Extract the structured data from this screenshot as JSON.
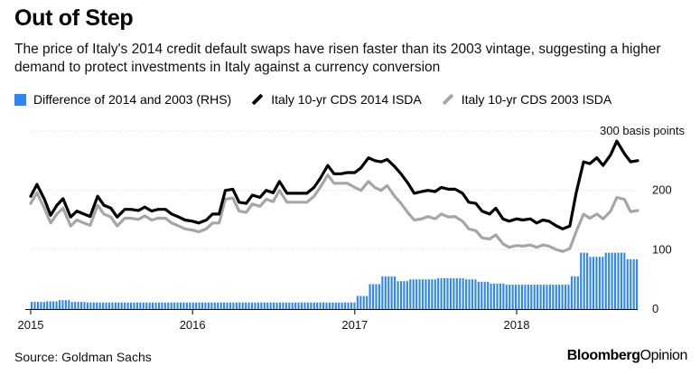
{
  "title": "Out of Step",
  "subtitle": "The price of Italy's 2014 credit default swaps have risen faster than its 2003 vintage, suggesting a higher demand to protect investments in Italy against a currency conversion",
  "legend": [
    {
      "label": "Difference of 2014 and 2003 (RHS)",
      "color": "#2f86f5",
      "kind": "bar"
    },
    {
      "label": "Italy 10-yr CDS 2014 ISDA",
      "color": "#000000",
      "kind": "line"
    },
    {
      "label": "Italy 10-yr CDS 2003 ISDA",
      "color": "#a6a6a6",
      "kind": "line"
    }
  ],
  "source": "Source: Goldman Sachs",
  "brand": {
    "bold": "Bloomberg",
    "thin": "Opinion"
  },
  "chart_data": {
    "type": "line",
    "x_range": [
      "2015-01-01",
      "2018-10-01"
    ],
    "x_ticks": [
      "2015",
      "2016",
      "2017",
      "2018"
    ],
    "ylim": [
      0,
      300
    ],
    "y_ticks": [
      {
        "value": 0,
        "label": "0"
      },
      {
        "value": 100,
        "label": "100"
      },
      {
        "value": 200,
        "label": "200"
      },
      {
        "value": 300,
        "label": "300 basis points"
      }
    ],
    "series": [
      {
        "name": "Italy 10-yr CDS 2014 ISDA",
        "color": "#000000",
        "points": [
          [
            "2015-01-01",
            190
          ],
          [
            "2015-01-15",
            210
          ],
          [
            "2015-02-01",
            185
          ],
          [
            "2015-02-15",
            158
          ],
          [
            "2015-03-01",
            175
          ],
          [
            "2015-03-15",
            186
          ],
          [
            "2015-04-01",
            155
          ],
          [
            "2015-04-15",
            165
          ],
          [
            "2015-05-01",
            160
          ],
          [
            "2015-05-15",
            156
          ],
          [
            "2015-06-01",
            190
          ],
          [
            "2015-06-15",
            175
          ],
          [
            "2015-07-01",
            170
          ],
          [
            "2015-07-15",
            155
          ],
          [
            "2015-08-01",
            168
          ],
          [
            "2015-08-15",
            168
          ],
          [
            "2015-09-01",
            166
          ],
          [
            "2015-09-15",
            172
          ],
          [
            "2015-10-01",
            165
          ],
          [
            "2015-10-15",
            168
          ],
          [
            "2015-11-01",
            168
          ],
          [
            "2015-11-15",
            160
          ],
          [
            "2015-12-01",
            155
          ],
          [
            "2015-12-15",
            150
          ],
          [
            "2016-01-01",
            148
          ],
          [
            "2016-01-15",
            145
          ],
          [
            "2016-02-01",
            150
          ],
          [
            "2016-02-15",
            160
          ],
          [
            "2016-03-01",
            160
          ],
          [
            "2016-03-15",
            200
          ],
          [
            "2016-04-01",
            202
          ],
          [
            "2016-04-15",
            180
          ],
          [
            "2016-05-01",
            178
          ],
          [
            "2016-05-15",
            192
          ],
          [
            "2016-06-01",
            188
          ],
          [
            "2016-06-15",
            200
          ],
          [
            "2016-07-01",
            196
          ],
          [
            "2016-07-15",
            215
          ],
          [
            "2016-08-01",
            195
          ],
          [
            "2016-08-15",
            195
          ],
          [
            "2016-09-01",
            195
          ],
          [
            "2016-09-15",
            195
          ],
          [
            "2016-10-01",
            205
          ],
          [
            "2016-10-15",
            220
          ],
          [
            "2016-11-01",
            242
          ],
          [
            "2016-11-15",
            228
          ],
          [
            "2016-12-01",
            228
          ],
          [
            "2016-12-15",
            230
          ],
          [
            "2017-01-01",
            230
          ],
          [
            "2017-01-15",
            238
          ],
          [
            "2017-02-01",
            255
          ],
          [
            "2017-02-15",
            250
          ],
          [
            "2017-03-01",
            248
          ],
          [
            "2017-03-15",
            252
          ],
          [
            "2017-04-01",
            240
          ],
          [
            "2017-04-15",
            228
          ],
          [
            "2017-05-01",
            212
          ],
          [
            "2017-05-15",
            195
          ],
          [
            "2017-06-01",
            198
          ],
          [
            "2017-06-15",
            200
          ],
          [
            "2017-07-01",
            198
          ],
          [
            "2017-07-15",
            205
          ],
          [
            "2017-08-01",
            202
          ],
          [
            "2017-08-15",
            202
          ],
          [
            "2017-09-01",
            195
          ],
          [
            "2017-09-15",
            180
          ],
          [
            "2017-10-01",
            178
          ],
          [
            "2017-10-15",
            165
          ],
          [
            "2017-11-01",
            160
          ],
          [
            "2017-11-15",
            170
          ],
          [
            "2017-12-01",
            152
          ],
          [
            "2017-12-15",
            148
          ],
          [
            "2018-01-01",
            152
          ],
          [
            "2018-01-15",
            150
          ],
          [
            "2018-02-01",
            152
          ],
          [
            "2018-02-15",
            145
          ],
          [
            "2018-03-01",
            150
          ],
          [
            "2018-03-15",
            148
          ],
          [
            "2018-04-01",
            140
          ],
          [
            "2018-04-15",
            135
          ],
          [
            "2018-05-01",
            140
          ],
          [
            "2018-05-15",
            195
          ],
          [
            "2018-06-01",
            248
          ],
          [
            "2018-06-15",
            245
          ],
          [
            "2018-07-01",
            255
          ],
          [
            "2018-07-15",
            242
          ],
          [
            "2018-08-01",
            260
          ],
          [
            "2018-08-15",
            283
          ],
          [
            "2018-09-01",
            262
          ],
          [
            "2018-09-15",
            248
          ],
          [
            "2018-10-01",
            250
          ]
        ]
      },
      {
        "name": "Italy 10-yr CDS 2003 ISDA",
        "color": "#a6a6a6",
        "points": [
          [
            "2015-01-01",
            178
          ],
          [
            "2015-01-15",
            196
          ],
          [
            "2015-02-01",
            170
          ],
          [
            "2015-02-15",
            145
          ],
          [
            "2015-03-01",
            160
          ],
          [
            "2015-03-15",
            170
          ],
          [
            "2015-04-01",
            140
          ],
          [
            "2015-04-15",
            150
          ],
          [
            "2015-05-01",
            145
          ],
          [
            "2015-05-15",
            141
          ],
          [
            "2015-06-01",
            175
          ],
          [
            "2015-06-15",
            160
          ],
          [
            "2015-07-01",
            155
          ],
          [
            "2015-07-15",
            140
          ],
          [
            "2015-08-01",
            153
          ],
          [
            "2015-08-15",
            153
          ],
          [
            "2015-09-01",
            151
          ],
          [
            "2015-09-15",
            157
          ],
          [
            "2015-10-01",
            150
          ],
          [
            "2015-10-15",
            153
          ],
          [
            "2015-11-01",
            153
          ],
          [
            "2015-11-15",
            145
          ],
          [
            "2015-12-01",
            140
          ],
          [
            "2015-12-15",
            135
          ],
          [
            "2016-01-01",
            133
          ],
          [
            "2016-01-15",
            130
          ],
          [
            "2016-02-01",
            135
          ],
          [
            "2016-02-15",
            145
          ],
          [
            "2016-03-01",
            145
          ],
          [
            "2016-03-15",
            185
          ],
          [
            "2016-04-01",
            187
          ],
          [
            "2016-04-15",
            165
          ],
          [
            "2016-05-01",
            163
          ],
          [
            "2016-05-15",
            177
          ],
          [
            "2016-06-01",
            173
          ],
          [
            "2016-06-15",
            185
          ],
          [
            "2016-07-01",
            181
          ],
          [
            "2016-07-15",
            200
          ],
          [
            "2016-08-01",
            180
          ],
          [
            "2016-08-15",
            180
          ],
          [
            "2016-09-01",
            180
          ],
          [
            "2016-09-15",
            180
          ],
          [
            "2016-10-01",
            190
          ],
          [
            "2016-10-15",
            205
          ],
          [
            "2016-11-01",
            226
          ],
          [
            "2016-11-15",
            212
          ],
          [
            "2016-12-01",
            212
          ],
          [
            "2016-12-15",
            212
          ],
          [
            "2017-01-01",
            205
          ],
          [
            "2017-01-15",
            200
          ],
          [
            "2017-02-01",
            215
          ],
          [
            "2017-02-15",
            205
          ],
          [
            "2017-03-01",
            200
          ],
          [
            "2017-03-15",
            208
          ],
          [
            "2017-04-01",
            190
          ],
          [
            "2017-04-15",
            178
          ],
          [
            "2017-05-01",
            162
          ],
          [
            "2017-05-15",
            150
          ],
          [
            "2017-06-01",
            152
          ],
          [
            "2017-06-15",
            156
          ],
          [
            "2017-07-01",
            152
          ],
          [
            "2017-07-15",
            160
          ],
          [
            "2017-08-01",
            155
          ],
          [
            "2017-08-15",
            156
          ],
          [
            "2017-09-01",
            148
          ],
          [
            "2017-09-15",
            135
          ],
          [
            "2017-10-01",
            132
          ],
          [
            "2017-10-15",
            120
          ],
          [
            "2017-11-01",
            118
          ],
          [
            "2017-11-15",
            125
          ],
          [
            "2017-12-01",
            110
          ],
          [
            "2017-12-15",
            104
          ],
          [
            "2018-01-01",
            107
          ],
          [
            "2018-01-15",
            106
          ],
          [
            "2018-02-01",
            108
          ],
          [
            "2018-02-15",
            104
          ],
          [
            "2018-03-01",
            108
          ],
          [
            "2018-03-15",
            106
          ],
          [
            "2018-04-01",
            100
          ],
          [
            "2018-04-15",
            97
          ],
          [
            "2018-05-01",
            102
          ],
          [
            "2018-05-15",
            130
          ],
          [
            "2018-06-01",
            160
          ],
          [
            "2018-06-15",
            153
          ],
          [
            "2018-07-01",
            160
          ],
          [
            "2018-07-15",
            152
          ],
          [
            "2018-08-01",
            165
          ],
          [
            "2018-08-15",
            188
          ],
          [
            "2018-09-01",
            185
          ],
          [
            "2018-09-15",
            164
          ],
          [
            "2018-10-01",
            166
          ]
        ]
      },
      {
        "name": "Difference of 2014 and 2003 (RHS)",
        "type": "bar",
        "color": "#2f86f5",
        "segments": [
          {
            "from": "2015-01-01",
            "to": "2015-01-31",
            "value": 12
          },
          {
            "from": "2015-02-01",
            "to": "2015-02-28",
            "value": 13
          },
          {
            "from": "2015-03-01",
            "to": "2015-03-31",
            "value": 15
          },
          {
            "from": "2015-04-01",
            "to": "2015-04-30",
            "value": 12
          },
          {
            "from": "2015-05-01",
            "to": "2016-12-31",
            "value": 11
          },
          {
            "from": "2017-01-01",
            "to": "2017-01-31",
            "value": 22
          },
          {
            "from": "2017-02-01",
            "to": "2017-02-28",
            "value": 42
          },
          {
            "from": "2017-03-01",
            "to": "2017-03-31",
            "value": 55
          },
          {
            "from": "2017-04-01",
            "to": "2017-04-30",
            "value": 47
          },
          {
            "from": "2017-05-01",
            "to": "2017-05-31",
            "value": 50
          },
          {
            "from": "2017-06-01",
            "to": "2017-06-30",
            "value": 50
          },
          {
            "from": "2017-07-01",
            "to": "2017-07-31",
            "value": 52
          },
          {
            "from": "2017-08-01",
            "to": "2017-08-31",
            "value": 52
          },
          {
            "from": "2017-09-01",
            "to": "2017-09-30",
            "value": 50
          },
          {
            "from": "2017-10-01",
            "to": "2017-10-31",
            "value": 46
          },
          {
            "from": "2017-11-01",
            "to": "2017-11-30",
            "value": 43
          },
          {
            "from": "2017-12-01",
            "to": "2018-04-30",
            "value": 41
          },
          {
            "from": "2018-05-01",
            "to": "2018-05-20",
            "value": 55
          },
          {
            "from": "2018-05-21",
            "to": "2018-06-10",
            "value": 95
          },
          {
            "from": "2018-06-11",
            "to": "2018-07-15",
            "value": 88
          },
          {
            "from": "2018-07-16",
            "to": "2018-08-31",
            "value": 95
          },
          {
            "from": "2018-09-01",
            "to": "2018-10-01",
            "value": 84
          }
        ]
      }
    ]
  }
}
